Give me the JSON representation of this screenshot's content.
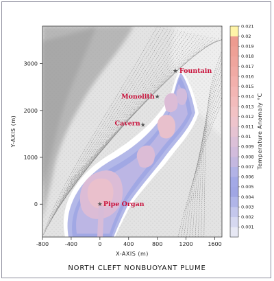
{
  "chart_data": {
    "type": "contour",
    "title": "NORTH CLEFT NONBUOYANT PLUME",
    "xlabel": "X-AXIS (m)",
    "ylabel": "Y-AXIS (m)",
    "xlim": [
      -800,
      1700
    ],
    "ylim": [
      -700,
      3800
    ],
    "x_ticks": [
      -800,
      -400,
      0,
      400,
      800,
      1200,
      1600
    ],
    "y_ticks": [
      0,
      1000,
      2000,
      3000
    ],
    "colorbar": {
      "label": "Temperature Anomaly °C",
      "ticks": [
        "0.001",
        "0.002",
        "0.003",
        "0.004",
        "0.005",
        "0.006",
        "0.007",
        "0.008",
        "0.009",
        "0.01",
        "0.011",
        "0.012",
        "0.013",
        "0.014",
        "0.015",
        "0.016",
        "0.017",
        "0.018",
        "0.019",
        "0.02",
        "0.021"
      ],
      "colors": [
        "#e7e8f4",
        "#d6d8f0",
        "#c4c7ec",
        "#b0b5e8",
        "#a0a6e4",
        "#a3a9e6",
        "#b2b3e6",
        "#c4b8e0",
        "#d2bcdc",
        "#dcc0d8",
        "#e6c3d2",
        "#eec4cc",
        "#f2c2c4",
        "#f3bcbc",
        "#f3b6b4",
        "#f2b0ac",
        "#f0aaa4",
        "#efa59d",
        "#eea096",
        "#ed9b90",
        "#fff4a8"
      ]
    },
    "sites": [
      {
        "name": "Fountain",
        "x": 1050,
        "y": 2850
      },
      {
        "name": "Monolith",
        "x": 800,
        "y": 2300
      },
      {
        "name": "Cavern",
        "x": 600,
        "y": 1700
      },
      {
        "name": "Pipe Organ",
        "x": 0,
        "y": 0
      }
    ]
  }
}
